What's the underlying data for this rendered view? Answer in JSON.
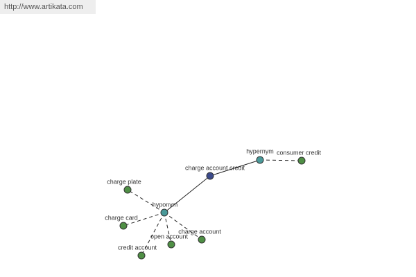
{
  "header": {
    "url": "http://www.artikata.com"
  },
  "nodes": [
    {
      "label": "charge account credit"
    },
    {
      "label": "hypernym"
    },
    {
      "label": "consumer credit"
    },
    {
      "label": "hyponym"
    },
    {
      "label": "charge plate"
    },
    {
      "label": "charge card"
    },
    {
      "label": "credit account"
    },
    {
      "label": "open account"
    },
    {
      "label": "charge account"
    }
  ]
}
